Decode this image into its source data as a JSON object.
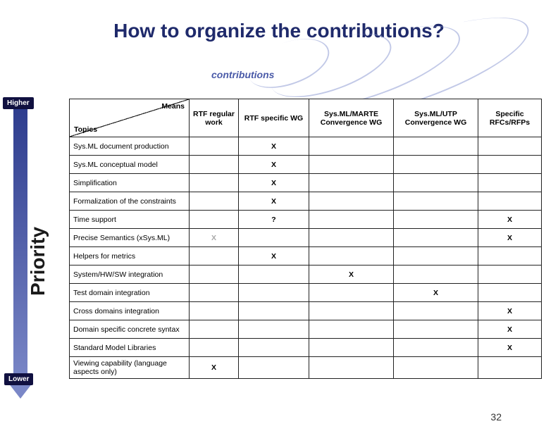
{
  "title": "How to organize the contributions?",
  "contrib_label": "contributions",
  "priority": {
    "higher": "Higher",
    "lower": "Lower",
    "axis": "Priority"
  },
  "page_number": "32",
  "colors": {
    "title": "#1f2a6b",
    "accent": "#4a5aa8",
    "arrow_top": "#2b3a8c",
    "arrow_bottom": "#7a87c7",
    "border": "#222222",
    "grey_x": "#a8a8a8"
  },
  "table": {
    "corner": {
      "means": "Means",
      "topics": "Topics"
    },
    "columns": [
      "RTF regular work",
      "RTF specific WG",
      "Sys.ML/MARTE Convergence WG",
      "Sys.ML/UTP Convergence WG",
      "Specific RFCs/RFPs"
    ],
    "rows": [
      {
        "topic": "Sys.ML document production",
        "cells": [
          "",
          "X",
          "",
          "",
          ""
        ]
      },
      {
        "topic": "Sys.ML conceptual model",
        "cells": [
          "",
          "X",
          "",
          "",
          ""
        ]
      },
      {
        "topic": "Simplification",
        "cells": [
          "",
          "X",
          "",
          "",
          ""
        ]
      },
      {
        "topic": "Formalization of the constraints",
        "cells": [
          "",
          "X",
          "",
          "",
          ""
        ]
      },
      {
        "topic": "Time support",
        "cells": [
          "",
          "?",
          "",
          "",
          "X"
        ]
      },
      {
        "topic": "Precise Semantics (xSys.ML)",
        "cells": [
          "X*",
          "",
          "",
          "",
          "X"
        ]
      },
      {
        "topic": "Helpers for metrics",
        "cells": [
          "",
          "X",
          "",
          "",
          ""
        ]
      },
      {
        "topic": "System/HW/SW integration",
        "cells": [
          "",
          "",
          "X",
          "",
          ""
        ]
      },
      {
        "topic": "Test domain integration",
        "cells": [
          "",
          "",
          "",
          "X",
          ""
        ]
      },
      {
        "topic": "Cross domains integration",
        "cells": [
          "",
          "",
          "",
          "",
          "X"
        ]
      },
      {
        "topic": "Domain specific concrete syntax",
        "cells": [
          "",
          "",
          "",
          "",
          "X"
        ]
      },
      {
        "topic": "Standard Model Libraries",
        "cells": [
          "",
          "",
          "",
          "",
          "X"
        ]
      },
      {
        "topic": "Viewing capability (language aspects only)",
        "cells": [
          "X",
          "",
          "",
          "",
          ""
        ]
      }
    ]
  }
}
